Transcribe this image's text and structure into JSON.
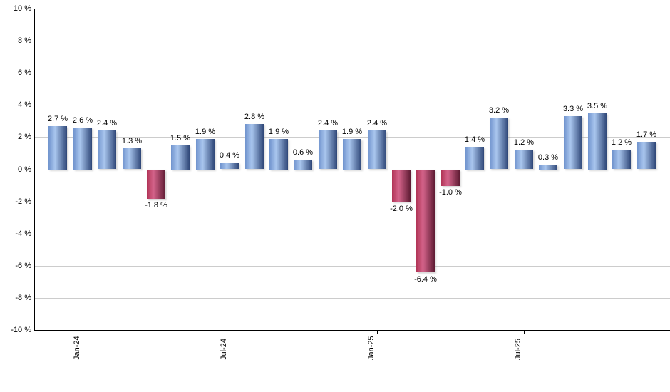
{
  "chart_data": {
    "type": "bar",
    "title": "",
    "xlabel": "",
    "ylabel": "",
    "ylim": [
      -10,
      10
    ],
    "ytick_step": 2,
    "grid": true,
    "legend_position": "none",
    "background": "#ffffff",
    "yticks": [
      {
        "value": 10,
        "label": "10 %"
      },
      {
        "value": 8,
        "label": "8 %"
      },
      {
        "value": 6,
        "label": "6 %"
      },
      {
        "value": 4,
        "label": "4 %"
      },
      {
        "value": 2,
        "label": "2 %"
      },
      {
        "value": 0,
        "label": "0 %"
      },
      {
        "value": -2,
        "label": "-2 %"
      },
      {
        "value": -4,
        "label": "-4 %"
      },
      {
        "value": -6,
        "label": "-6 %"
      },
      {
        "value": -8,
        "label": "-8 %"
      },
      {
        "value": -10,
        "label": "-10 %"
      }
    ],
    "bars": [
      {
        "value": 2.7,
        "label": "2.7 %"
      },
      {
        "value": 2.6,
        "label": "2.6 %"
      },
      {
        "value": 2.4,
        "label": "2.4 %"
      },
      {
        "value": 1.3,
        "label": "1.3 %"
      },
      {
        "value": -1.8,
        "label": "-1.8 %"
      },
      {
        "value": 1.5,
        "label": "1.5 %"
      },
      {
        "value": 1.9,
        "label": "1.9 %"
      },
      {
        "value": 0.4,
        "label": "0.4 %"
      },
      {
        "value": 2.8,
        "label": "2.8 %"
      },
      {
        "value": 1.9,
        "label": "1.9 %"
      },
      {
        "value": 0.6,
        "label": "0.6 %"
      },
      {
        "value": 2.4,
        "label": "2.4 %"
      },
      {
        "value": 1.9,
        "label": "1.9 %"
      },
      {
        "value": 2.4,
        "label": "2.4 %"
      },
      {
        "value": -2.0,
        "label": "-2.0 %"
      },
      {
        "value": -6.4,
        "label": "-6.4 %"
      },
      {
        "value": -1.0,
        "label": "-1.0 %"
      },
      {
        "value": 1.4,
        "label": "1.4 %"
      },
      {
        "value": 3.2,
        "label": "3.2 %"
      },
      {
        "value": 1.2,
        "label": "1.2 %"
      },
      {
        "value": 0.3,
        "label": "0.3 %"
      },
      {
        "value": 3.3,
        "label": "3.3 %"
      },
      {
        "value": 3.5,
        "label": "3.5 %"
      },
      {
        "value": 1.2,
        "label": "1.2 %"
      },
      {
        "value": 1.7,
        "label": "1.7 %"
      }
    ],
    "xticks": [
      {
        "label": "Jan-24",
        "bar_index": 1
      },
      {
        "label": "Jul-24",
        "bar_index": 7
      },
      {
        "label": "Jan-25",
        "bar_index": 13
      },
      {
        "label": "Jul-25",
        "bar_index": 19
      }
    ],
    "colors": {
      "positive_bar_gradient": [
        "#7093cd",
        "#a9c6ee",
        "#2e4677"
      ],
      "negative_bar_gradient": [
        "#b03456",
        "#d4638a",
        "#5e1b33"
      ],
      "gridline": "#cccccc",
      "axis": "#000000",
      "text": "#000000"
    }
  }
}
